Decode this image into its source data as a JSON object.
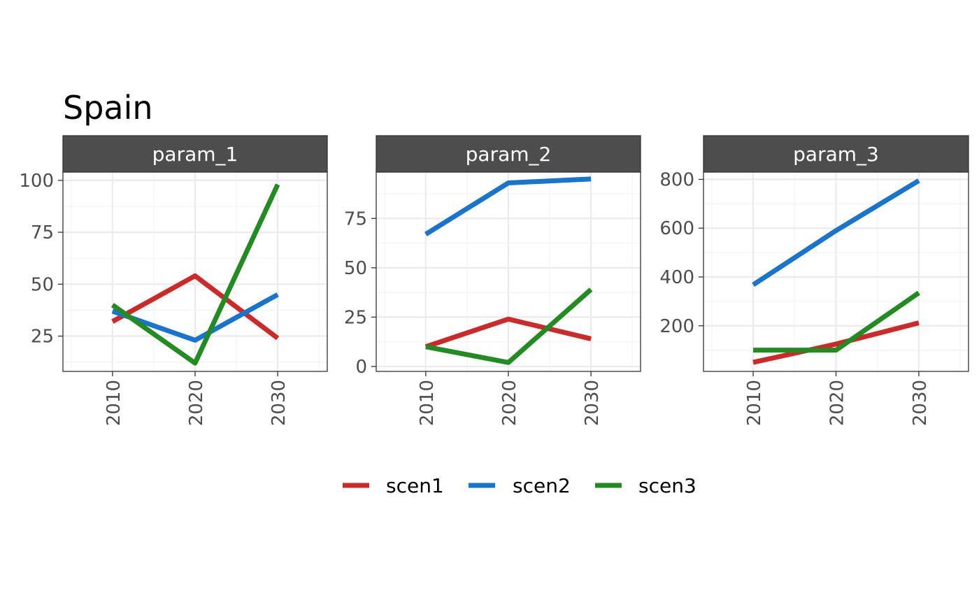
{
  "chart_data": {
    "type": "line",
    "title": "Spain",
    "facet_variable_values": [
      "param_1",
      "param_2",
      "param_3"
    ],
    "legend": {
      "placement": "bottom",
      "entries": [
        "scen1",
        "scen2",
        "scen3"
      ]
    },
    "colors": {
      "scen1": "#cc2929",
      "scen2": "#1874cd",
      "scen3": "#228b22",
      "strip": "#4d4d4d",
      "grid_major": "#ebebeb",
      "grid_minor": "#f3f3f3",
      "border": "#333333"
    },
    "grid": true,
    "panels": [
      {
        "strip": "param_1",
        "x": [
          2010,
          2020,
          2030
        ],
        "xlim": [
          2004,
          2036
        ],
        "x_ticks": [
          "2010",
          "2020",
          "2030"
        ],
        "ylim": [
          8,
          104
        ],
        "y_ticks": [
          25,
          50,
          75,
          100
        ],
        "y_tick_labels": [
          "25",
          "50",
          "75",
          "100"
        ],
        "series": [
          {
            "name": "scen1",
            "values": [
              32,
              54,
              24
            ]
          },
          {
            "name": "scen2",
            "values": [
              37,
              23,
              45
            ]
          },
          {
            "name": "scen3",
            "values": [
              40,
              12,
              98
            ]
          }
        ]
      },
      {
        "strip": "param_2",
        "x": [
          2010,
          2020,
          2030
        ],
        "xlim": [
          2004,
          2036
        ],
        "x_ticks": [
          "2010",
          "2020",
          "2030"
        ],
        "ylim": [
          -2.5,
          98.5
        ],
        "y_ticks": [
          0,
          25,
          50,
          75
        ],
        "y_tick_labels": [
          "0",
          "25",
          "50",
          "75"
        ],
        "series": [
          {
            "name": "scen1",
            "values": [
              10,
              24,
              14
            ]
          },
          {
            "name": "scen2",
            "values": [
              67,
              93,
              95
            ]
          },
          {
            "name": "scen3",
            "values": [
              10,
              2,
              39
            ]
          }
        ]
      },
      {
        "strip": "param_3",
        "x": [
          2010,
          2020,
          2030
        ],
        "xlim": [
          2004,
          2036
        ],
        "x_ticks": [
          "2010",
          "2020",
          "2030"
        ],
        "ylim": [
          13,
          830
        ],
        "y_ticks": [
          200,
          400,
          600,
          800
        ],
        "y_tick_labels": [
          "200",
          "400",
          "600",
          "800"
        ],
        "series": [
          {
            "name": "scen1",
            "values": [
              50,
              125,
              212
            ]
          },
          {
            "name": "scen2",
            "values": [
              368,
              590,
              795
            ]
          },
          {
            "name": "scen3",
            "values": [
              100,
              100,
              335
            ]
          }
        ]
      }
    ]
  }
}
